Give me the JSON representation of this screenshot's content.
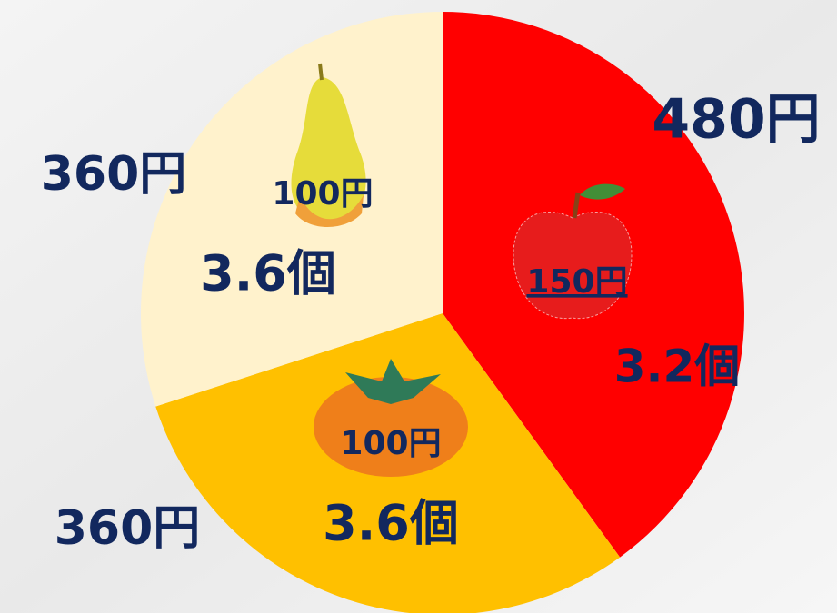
{
  "chart_data": {
    "type": "pie",
    "values": [
      480,
      360,
      360
    ],
    "value_labels": [
      "480円",
      "360円",
      "360円"
    ],
    "colors": [
      "#ff0000",
      "#ffc000",
      "#fff2cc"
    ],
    "unit_price_labels": [
      "150円",
      "100円",
      "100円"
    ],
    "count_labels": [
      "3.2個",
      "3.6個",
      "3.6個"
    ]
  }
}
